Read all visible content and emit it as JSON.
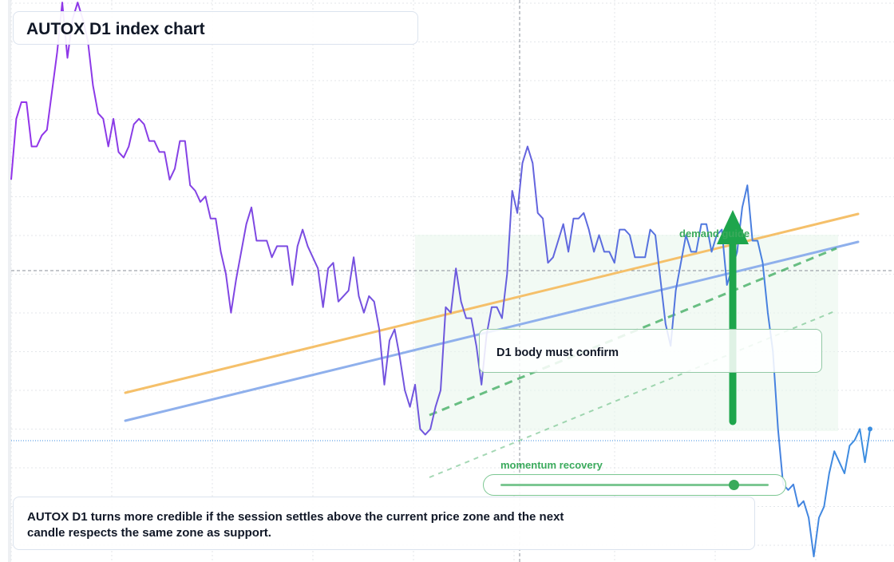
{
  "title": "AUTOX D1 index chart",
  "colors": {
    "price_purple": "#9333ea",
    "price_blue": "#3b8ee0",
    "orange_line": "#f5c06a",
    "blue_line": "#8fb0ec",
    "green": "#1ea54c",
    "zone_fill": "#e9f7ec"
  },
  "annotations": {
    "demand_label": "demand guide",
    "note": "D1 body must confirm",
    "callout": "AUTOX D1 turns more credible if the session settles above the current price zone and the next candle respects the same zone as support."
  },
  "slider": {
    "label": "momentum recovery",
    "value": 0.87
  },
  "chart_data": {
    "type": "line",
    "title": "AUTOX D1 index chart",
    "xlabel": "",
    "ylabel": "",
    "x_range": [
      0,
      179
    ],
    "y_range": [
      0,
      100
    ],
    "grid": true,
    "legend": "none",
    "reference_lines": {
      "horizontal": [
        52,
        23
      ],
      "vertical": [
        106
      ]
    },
    "series": [
      {
        "values": [
          69,
          80,
          83,
          83,
          75,
          75,
          77,
          78,
          85,
          92,
          101,
          91,
          98,
          101,
          98,
          94,
          86,
          81,
          80,
          75,
          80,
          74,
          73,
          75,
          79,
          80,
          79,
          76,
          76,
          74,
          74,
          69,
          71,
          76,
          76,
          68,
          67,
          65,
          66,
          62,
          62,
          56,
          52,
          45,
          51,
          56,
          61,
          64,
          58,
          58,
          58,
          55,
          57,
          57,
          57,
          50,
          57,
          60,
          57,
          55,
          53,
          46,
          53,
          54,
          47,
          48,
          49,
          55,
          48,
          45,
          48,
          47,
          42,
          32,
          40,
          42,
          37,
          31,
          28,
          32,
          24,
          23,
          24,
          28,
          31,
          46,
          45,
          53,
          47,
          44,
          44,
          39,
          32,
          41,
          46,
          46,
          44,
          52,
          67,
          63,
          72,
          75,
          72,
          63,
          62,
          54,
          55,
          58,
          61,
          56,
          62,
          62,
          63,
          60,
          56,
          59,
          56,
          56,
          54,
          60,
          60,
          59,
          55,
          55,
          55,
          60,
          59,
          51,
          43,
          39,
          49,
          54,
          59,
          56,
          56,
          61,
          61,
          56,
          59,
          60,
          50,
          53,
          56,
          64,
          68,
          58,
          58,
          54,
          45,
          38,
          24,
          14,
          13,
          14,
          10,
          11,
          8,
          1,
          8,
          10,
          16,
          20,
          18,
          16,
          21,
          22,
          24,
          18,
          24
        ]
      }
    ]
  }
}
